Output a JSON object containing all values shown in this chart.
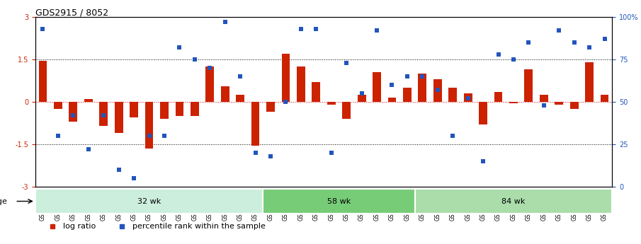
{
  "title": "GDS2915 / 8052",
  "samples": [
    "GSM97277",
    "GSM97278",
    "GSM97279",
    "GSM97280",
    "GSM97281",
    "GSM97282",
    "GSM97283",
    "GSM97284",
    "GSM97285",
    "GSM97286",
    "GSM97287",
    "GSM97288",
    "GSM97289",
    "GSM97290",
    "GSM97291",
    "GSM97292",
    "GSM97293",
    "GSM97294",
    "GSM97295",
    "GSM97296",
    "GSM97297",
    "GSM97298",
    "GSM97299",
    "GSM97300",
    "GSM97301",
    "GSM97302",
    "GSM97303",
    "GSM97304",
    "GSM97305",
    "GSM97306",
    "GSM97307",
    "GSM97308",
    "GSM97309",
    "GSM97310",
    "GSM97311",
    "GSM97312",
    "GSM97313",
    "GSM97314"
  ],
  "log_ratio": [
    1.45,
    -0.25,
    -0.7,
    0.1,
    -0.85,
    -1.1,
    -0.55,
    -1.65,
    -0.6,
    -0.5,
    -0.5,
    1.25,
    0.55,
    0.25,
    -1.55,
    -0.35,
    1.7,
    1.25,
    0.7,
    -0.1,
    -0.6,
    0.25,
    1.05,
    0.15,
    0.5,
    1.0,
    0.8,
    0.5,
    0.3,
    -0.8,
    0.35,
    -0.05,
    1.15,
    0.25,
    -0.1,
    -0.25,
    1.4,
    0.25
  ],
  "percentile": [
    93,
    30,
    42,
    22,
    42,
    10,
    5,
    30,
    30,
    82,
    75,
    70,
    97,
    65,
    20,
    18,
    50,
    93,
    93,
    20,
    73,
    55,
    92,
    60,
    65,
    65,
    57,
    30,
    52,
    15,
    78,
    75,
    85,
    48,
    92,
    85,
    82,
    87
  ],
  "groups": [
    {
      "label": "32 wk",
      "start": 0,
      "end": 15,
      "color": "#cceecc"
    },
    {
      "label": "58 wk",
      "start": 15,
      "end": 25,
      "color": "#88cc88"
    },
    {
      "label": "84 wk",
      "start": 25,
      "end": 38,
      "color": "#aaddaa"
    }
  ],
  "bar_color": "#cc2200",
  "dot_color": "#2255bb",
  "ylim_left": [
    -3.0,
    3.0
  ],
  "ylim_right": [
    0,
    100
  ],
  "yticks_left": [
    -3,
    -1.5,
    0,
    1.5,
    3
  ],
  "yticks_right": [
    0,
    25,
    50,
    75,
    100
  ],
  "ytick_labels_right": [
    "0",
    "25",
    "50",
    "75",
    "100%"
  ],
  "hlines": [
    -1.5,
    0.0,
    1.5
  ],
  "legend_items": [
    {
      "label": "log ratio",
      "color": "#cc2200"
    },
    {
      "label": "percentile rank within the sample",
      "color": "#2255bb"
    }
  ],
  "title_fontsize": 9,
  "tick_fontsize": 7,
  "bar_width": 0.55
}
